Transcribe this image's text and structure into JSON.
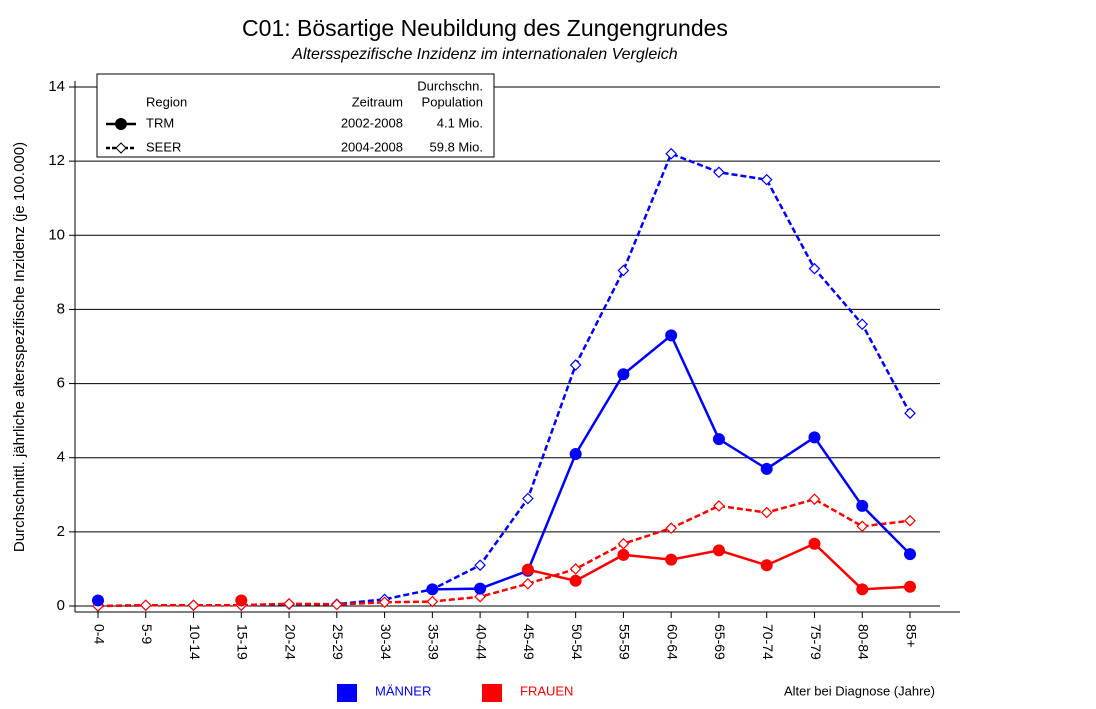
{
  "chart_data": {
    "type": "line",
    "title": "C01: Bösartige Neubildung des Zungengrundes",
    "subtitle": "Altersspezifische Inzidenz im internationalen Vergleich",
    "ylabel": "Durchschnittl. jährliche altersspezifische Inzidenz (je 100.000)",
    "xlabel": "Alter bei Diagnose (Jahre)",
    "categories": [
      "0-4",
      "5-9",
      "10-14",
      "15-19",
      "20-24",
      "25-29",
      "30-34",
      "35-39",
      "40-44",
      "45-49",
      "50-54",
      "55-59",
      "60-64",
      "65-69",
      "70-74",
      "75-79",
      "80-84",
      "85+"
    ],
    "ylim": [
      0,
      14
    ],
    "yticks": [
      0,
      2,
      4,
      6,
      8,
      10,
      12,
      14
    ],
    "grid": true,
    "legend_headers": {
      "region": "Region",
      "period": "Zeitraum",
      "population_top": "Durchschn.",
      "population": "Population"
    },
    "sexes": [
      {
        "name": "MÄNNER",
        "color": "#0000ff"
      },
      {
        "name": "FRAUEN",
        "color": "#ff0000"
      }
    ],
    "regions": [
      {
        "name": "TRM",
        "period": "2002-2008",
        "population": "4.1 Mio.",
        "line": "solid",
        "marker": "circle",
        "values": [
          [
            0.15,
            null,
            null,
            null,
            null,
            null,
            null,
            0.45,
            0.47,
            0.95,
            4.1,
            6.25,
            7.3,
            4.5,
            3.7,
            4.55,
            2.7,
            1.4
          ],
          [
            null,
            null,
            null,
            0.15,
            null,
            null,
            null,
            null,
            null,
            0.98,
            0.68,
            1.38,
            1.25,
            1.5,
            1.1,
            1.68,
            0.45,
            0.52
          ]
        ]
      },
      {
        "name": "SEER",
        "period": "2004-2008",
        "population": "59.8 Mio.",
        "line": "dashed",
        "marker": "diamond",
        "values": [
          [
            0,
            0.02,
            0.02,
            0.02,
            0.05,
            0.05,
            0.18,
            0.45,
            1.1,
            2.9,
            6.5,
            9.05,
            12.2,
            11.7,
            11.5,
            9.1,
            7.6,
            5.2
          ],
          [
            0,
            0.02,
            0.02,
            0.02,
            0.06,
            0.04,
            0.1,
            0.12,
            0.25,
            0.6,
            1.0,
            1.68,
            2.1,
            2.7,
            2.52,
            2.88,
            2.15,
            2.3
          ]
        ]
      }
    ]
  }
}
